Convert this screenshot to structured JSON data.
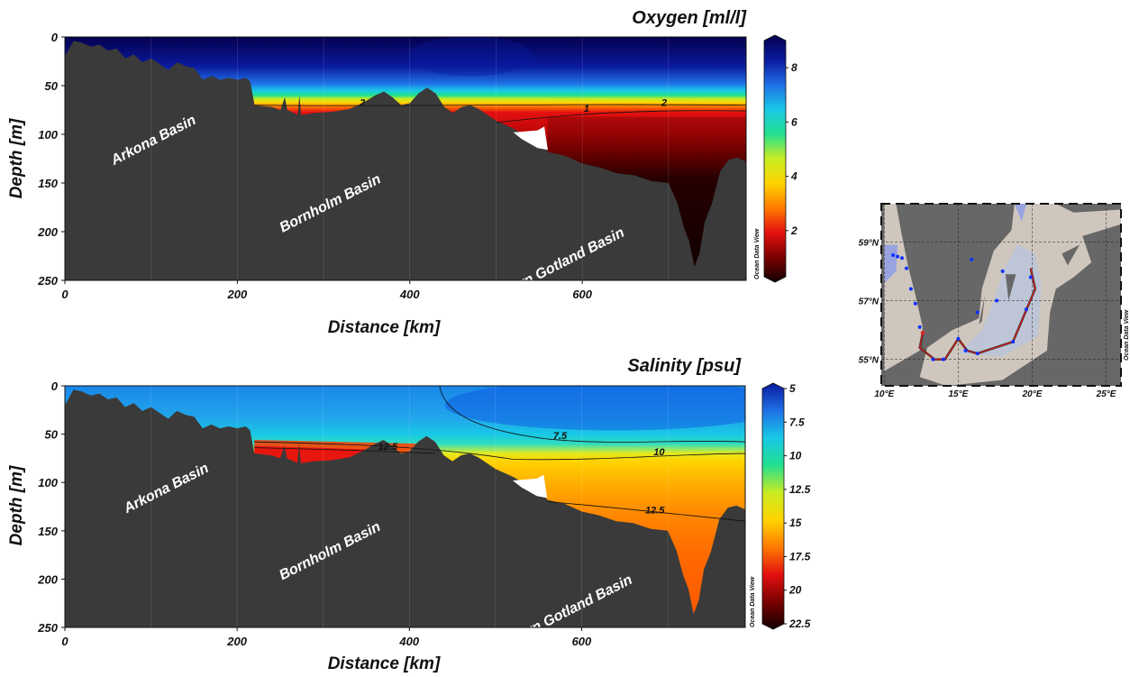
{
  "watermark": "Ocean Data View",
  "chart_data": [
    {
      "type": "heatmap",
      "title": "Oxygen [ml/l]",
      "xlabel": "Distance [km]",
      "ylabel": "Depth [m]",
      "xlim": [
        0,
        790
      ],
      "ylim": [
        250,
        0
      ],
      "xticks": [
        0,
        200,
        400,
        600
      ],
      "yticks": [
        0,
        50,
        100,
        150,
        200,
        250
      ],
      "colorbar": {
        "ticks": [
          8,
          6,
          4,
          2
        ],
        "range": [
          0.3,
          9
        ],
        "stops": [
          "#05004f",
          "#0a1a9e",
          "#1f6fe6",
          "#18c8e6",
          "#22e090",
          "#c8ec22",
          "#ffd400",
          "#ff7a00",
          "#e41010",
          "#7a0000",
          "#120000"
        ]
      },
      "contours": [
        {
          "label": "2",
          "distance_km": 345,
          "depth_m": 71
        },
        {
          "label": "1",
          "distance_km": 605,
          "depth_m": 77
        },
        {
          "label": "2",
          "distance_km": 695,
          "depth_m": 71
        }
      ],
      "annotations": [
        {
          "text": "Arkona Basin",
          "distance_km": 105,
          "depth_m": 110
        },
        {
          "text": "Bornholm Basin",
          "distance_km": 310,
          "depth_m": 175
        },
        {
          "text": "Eastern Gotland Basin",
          "distance_km": 570,
          "depth_m": 240
        }
      ]
    },
    {
      "type": "heatmap",
      "title": "Salinity [psu]",
      "xlabel": "Distance [km]",
      "ylabel": "Depth [m]",
      "xlim": [
        0,
        790
      ],
      "ylim": [
        250,
        0
      ],
      "xticks": [
        0,
        200,
        400,
        600
      ],
      "yticks": [
        0,
        50,
        100,
        150,
        200,
        250
      ],
      "colorbar": {
        "ticks": [
          5,
          7.5,
          10,
          12.5,
          15,
          17.5,
          20,
          22.5
        ],
        "range": [
          5,
          22.5
        ],
        "stops": [
          "#0a1a9e",
          "#1f6fe6",
          "#18c8e6",
          "#22e090",
          "#c8ec22",
          "#ffd400",
          "#ff7a00",
          "#e41010",
          "#7a0000",
          "#120000"
        ]
      },
      "contours": [
        {
          "label": "7.5",
          "distance_km": 575,
          "depth_m": 55
        },
        {
          "label": "10",
          "distance_km": 690,
          "depth_m": 72
        },
        {
          "label": "12.5",
          "distance_km": 375,
          "depth_m": 66
        },
        {
          "label": "12.5",
          "distance_km": 685,
          "depth_m": 132
        }
      ],
      "annotations": [
        {
          "text": "Arkona Basin",
          "distance_km": 120,
          "depth_m": 110
        },
        {
          "text": "Bornholm Basin",
          "distance_km": 310,
          "depth_m": 175
        },
        {
          "text": "Eastern Gotland Basin",
          "distance_km": 580,
          "depth_m": 240
        }
      ]
    }
  ],
  "map": {
    "lat_labels": [
      "59°N",
      "57°N",
      "55°N"
    ],
    "lon_labels": [
      "10°E",
      "15°E",
      "20°E",
      "25°E"
    ],
    "stations": [
      {
        "lon": 10.6,
        "lat": 58.55
      },
      {
        "lon": 10.9,
        "lat": 58.5
      },
      {
        "lon": 11.2,
        "lat": 58.45
      },
      {
        "lon": 11.5,
        "lat": 58.1
      },
      {
        "lon": 11.8,
        "lat": 57.4
      },
      {
        "lon": 12.1,
        "lat": 56.9
      },
      {
        "lon": 12.4,
        "lat": 56.1
      },
      {
        "lon": 13.3,
        "lat": 55.0
      },
      {
        "lon": 14.0,
        "lat": 55.0
      },
      {
        "lon": 15.0,
        "lat": 55.7
      },
      {
        "lon": 15.5,
        "lat": 55.3
      },
      {
        "lon": 16.3,
        "lat": 55.2
      },
      {
        "lon": 18.7,
        "lat": 55.6
      },
      {
        "lon": 19.6,
        "lat": 56.7
      },
      {
        "lon": 19.9,
        "lat": 57.8
      },
      {
        "lon": 16.3,
        "lat": 56.6
      },
      {
        "lon": 17.6,
        "lat": 57.0
      },
      {
        "lon": 18.0,
        "lat": 58.0
      },
      {
        "lon": 15.9,
        "lat": 58.4
      }
    ],
    "track": [
      {
        "lon": 12.6,
        "lat": 55.9
      },
      {
        "lon": 12.4,
        "lat": 55.4
      },
      {
        "lon": 13.4,
        "lat": 55.0
      },
      {
        "lon": 14.1,
        "lat": 55.0
      },
      {
        "lon": 15.0,
        "lat": 55.7
      },
      {
        "lon": 15.6,
        "lat": 55.3
      },
      {
        "lon": 16.3,
        "lat": 55.2
      },
      {
        "lon": 18.7,
        "lat": 55.6
      },
      {
        "lon": 19.7,
        "lat": 56.8
      },
      {
        "lon": 20.2,
        "lat": 57.4
      },
      {
        "lon": 19.9,
        "lat": 58.1
      }
    ]
  }
}
